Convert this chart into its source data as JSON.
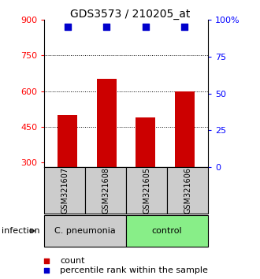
{
  "title": "GDS3573 / 210205_at",
  "samples": [
    "GSM321607",
    "GSM321608",
    "GSM321605",
    "GSM321606"
  ],
  "counts": [
    500,
    652,
    488,
    600
  ],
  "percentile_ranks": [
    95,
    95,
    95,
    95
  ],
  "bar_color": "#cc0000",
  "dot_color": "#0000cc",
  "ylim_left": [
    280,
    900
  ],
  "ylim_right": [
    0,
    100
  ],
  "yticks_left": [
    300,
    450,
    600,
    750,
    900
  ],
  "yticks_right": [
    0,
    25,
    50,
    75,
    100
  ],
  "ytick_labels_right": [
    "0",
    "25",
    "50",
    "75",
    "100%"
  ],
  "groups": [
    {
      "label": "C. pneumonia",
      "indices": [
        0,
        1
      ],
      "color": "#cccccc"
    },
    {
      "label": "control",
      "indices": [
        2,
        3
      ],
      "color": "#88ee88"
    }
  ],
  "group_label": "infection",
  "legend_count_label": "count",
  "legend_pct_label": "percentile rank within the sample",
  "background_color": "#ffffff",
  "dotted_yticks": [
    450,
    600,
    750
  ],
  "bar_bottom": 280
}
